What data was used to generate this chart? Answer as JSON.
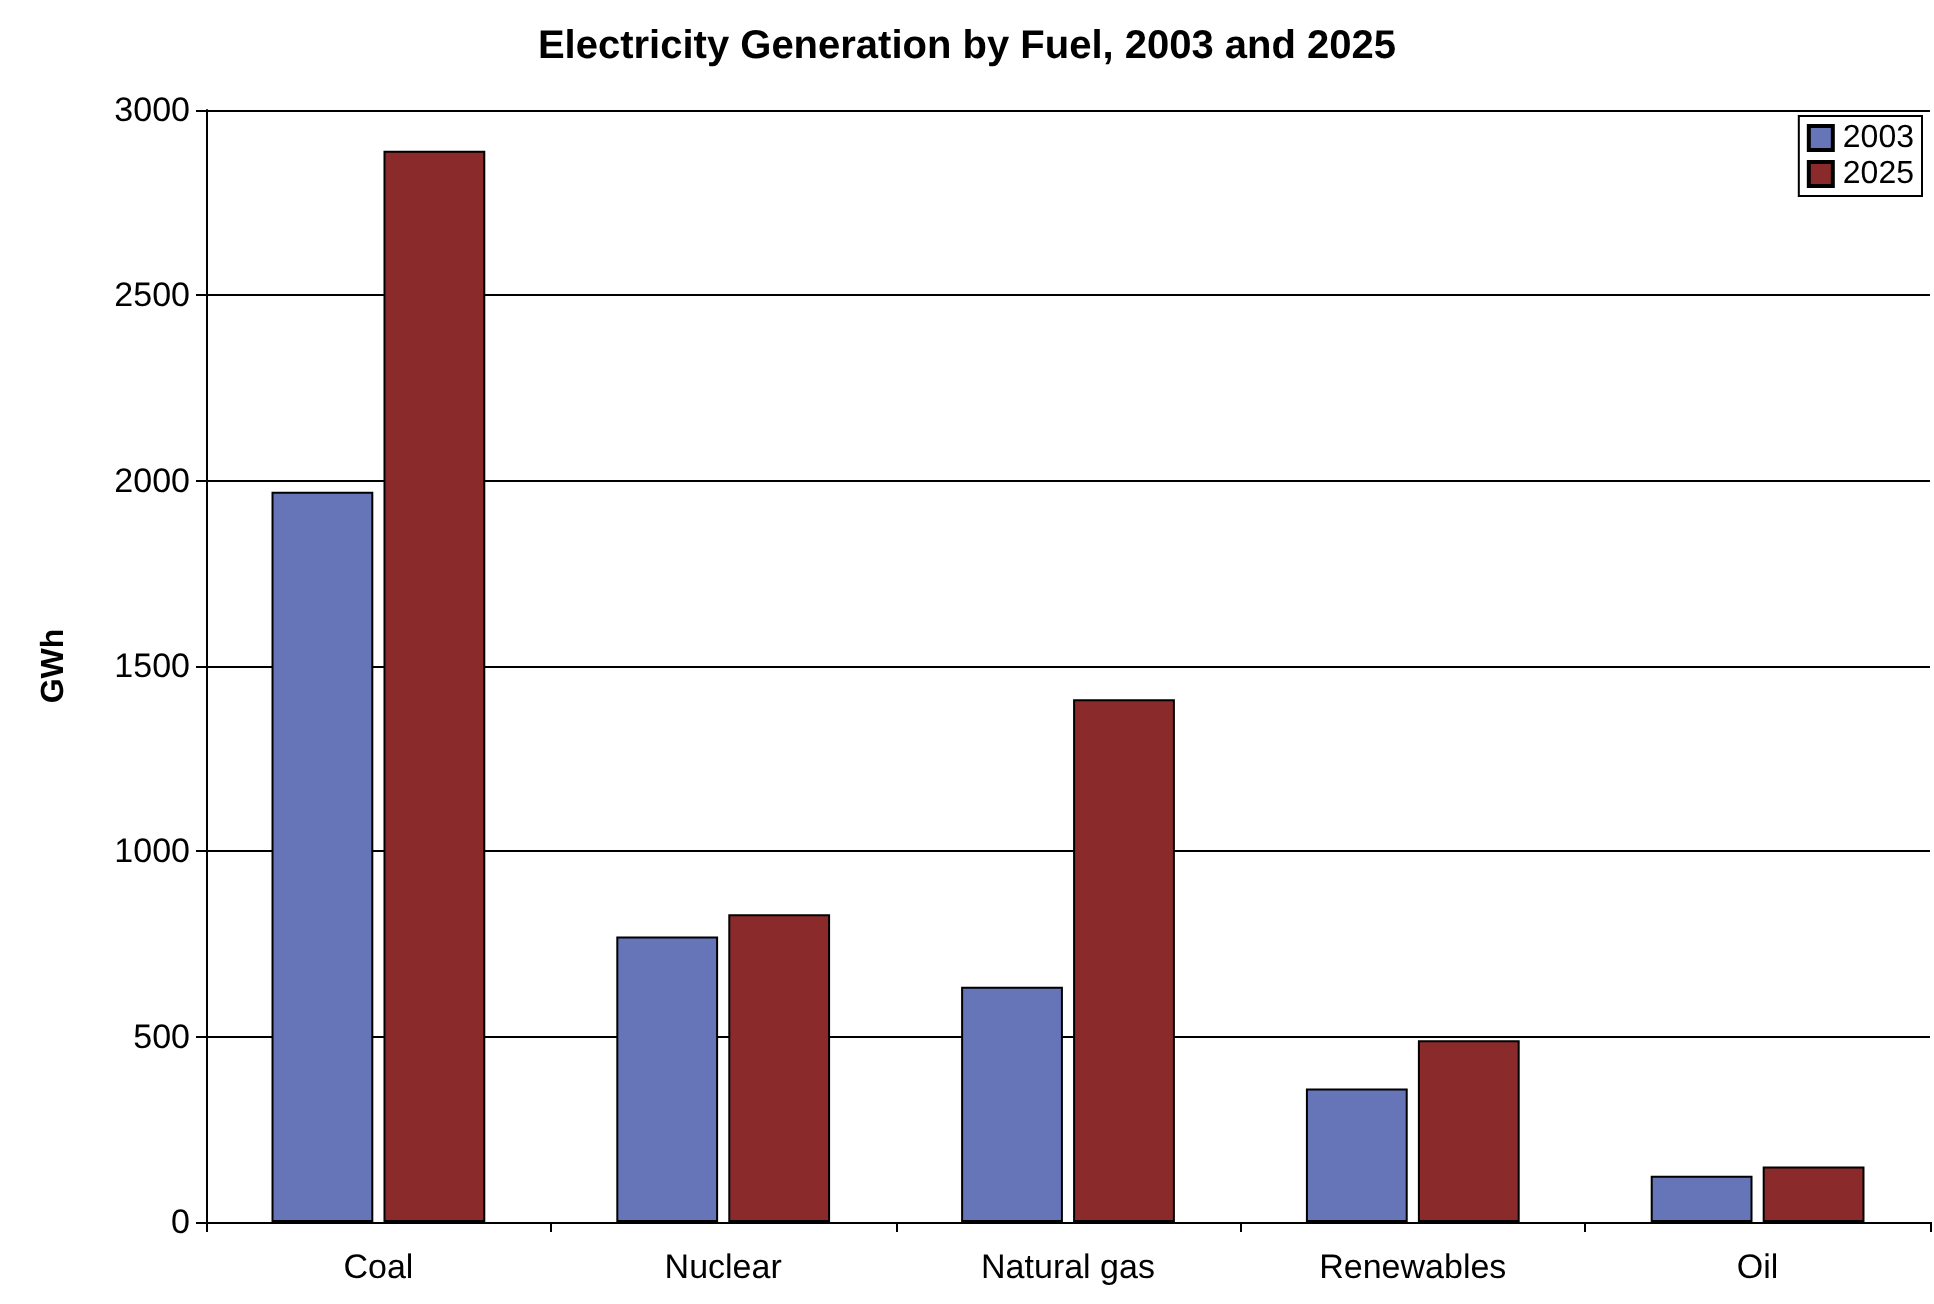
{
  "chart_data": {
    "type": "bar",
    "title": "Electricity Generation by Fuel, 2003 and 2025",
    "ylabel": "GWh",
    "categories": [
      "Coal",
      "Nuclear",
      "Natural gas",
      "Renewables",
      "Oil"
    ],
    "series": [
      {
        "name": "2003",
        "color": "#6674b8",
        "values": [
          1970,
          770,
          635,
          360,
          125
        ]
      },
      {
        "name": "2025",
        "color": "#8b2a2a",
        "values": [
          2890,
          830,
          1410,
          490,
          150
        ]
      }
    ],
    "ylim": [
      0,
      3000
    ],
    "yticks": [
      0,
      500,
      1000,
      1500,
      2000,
      2500,
      3000
    ],
    "grid": "y",
    "legend": "top right"
  }
}
